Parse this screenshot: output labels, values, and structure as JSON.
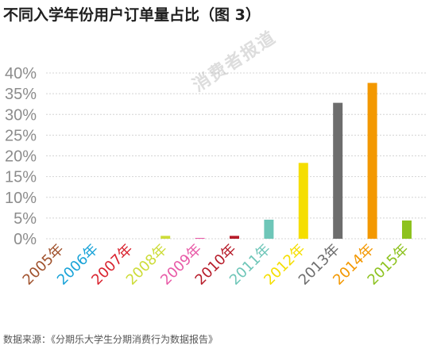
{
  "title": "不同入学年份用户订单量占比（图 3）",
  "source": "数据来源：《分期乐大学生分期消费行为数据报告》",
  "watermark": "消费者报道",
  "chart_data": {
    "type": "bar",
    "title": "不同入学年份用户订单量占比（图 3）",
    "categories": [
      "2005年",
      "2006年",
      "2007年",
      "2008年",
      "2009年",
      "2010年",
      "2011年",
      "2012年",
      "2013年",
      "2014年",
      "2015年"
    ],
    "values": [
      0,
      0,
      0,
      0.7,
      0.2,
      0.7,
      4.6,
      18.3,
      32.8,
      37.6,
      4.4
    ],
    "colors": [
      "#a0522d",
      "#1aa3d8",
      "#d9232f",
      "#cddc39",
      "#e85aa7",
      "#b71c2a",
      "#6ec6b8",
      "#f5de00",
      "#6d6d6d",
      "#f39800",
      "#8dc21f"
    ],
    "yticks": [
      "0%",
      "5%",
      "10%",
      "15%",
      "20%",
      "25%",
      "30%",
      "35%",
      "40%"
    ],
    "ylim": [
      0,
      40
    ],
    "xlabel": "",
    "ylabel": "",
    "grid": true
  }
}
